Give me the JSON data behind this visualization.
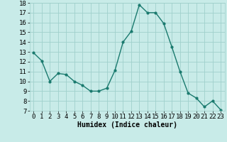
{
  "x": [
    0,
    1,
    2,
    3,
    4,
    5,
    6,
    7,
    8,
    9,
    10,
    11,
    12,
    13,
    14,
    15,
    16,
    17,
    18,
    19,
    20,
    21,
    22,
    23
  ],
  "y": [
    12.9,
    12.1,
    10.0,
    10.8,
    10.7,
    10.0,
    9.6,
    9.0,
    9.0,
    9.3,
    11.1,
    14.0,
    15.1,
    17.8,
    17.0,
    17.0,
    15.9,
    13.5,
    11.0,
    8.8,
    8.3,
    7.4,
    8.0,
    7.1
  ],
  "line_color": "#1a7a6e",
  "marker": "o",
  "markersize": 2.0,
  "linewidth": 1.0,
  "bg_color": "#c8ebe8",
  "grid_color": "#a0d0cc",
  "xlabel": "Humidex (Indice chaleur)",
  "xlabel_fontsize": 7,
  "ylabel_fontsize": 6.5,
  "tick_fontsize": 6.5,
  "ylim": [
    7,
    18
  ],
  "xlim": [
    -0.5,
    23.5
  ],
  "yticks": [
    7,
    8,
    9,
    10,
    11,
    12,
    13,
    14,
    15,
    16,
    17,
    18
  ],
  "xticks": [
    0,
    1,
    2,
    3,
    4,
    5,
    6,
    7,
    8,
    9,
    10,
    11,
    12,
    13,
    14,
    15,
    16,
    17,
    18,
    19,
    20,
    21,
    22,
    23
  ]
}
